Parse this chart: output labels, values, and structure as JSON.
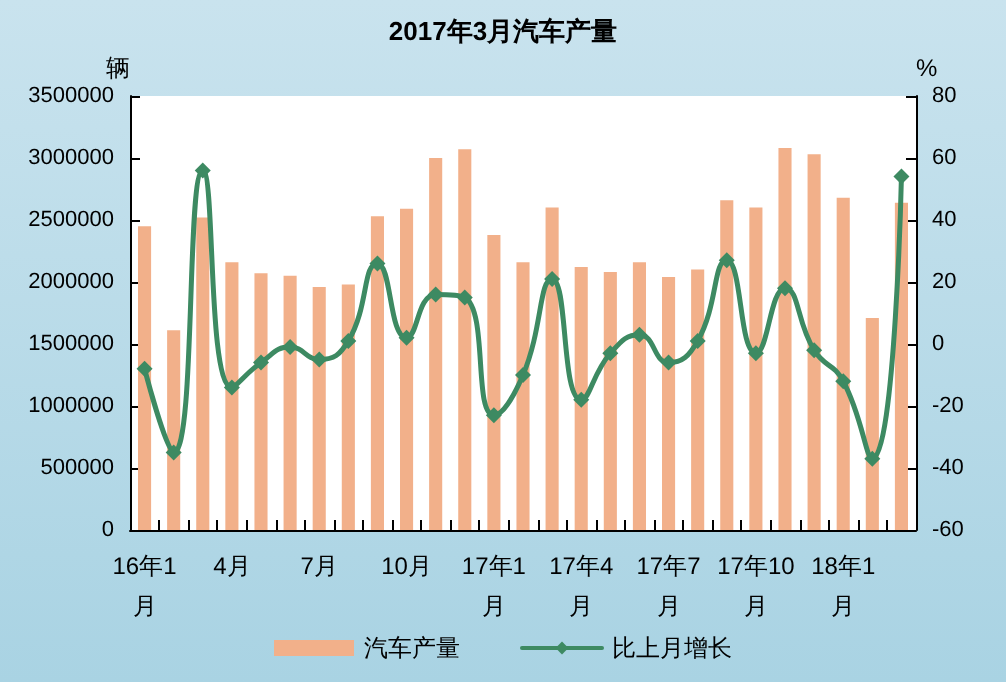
{
  "chart_data": {
    "type": "bar",
    "title": "2017年3月汽车产量",
    "ylabel": "辆",
    "y2label": "%",
    "categories": [
      "16年1\n月",
      null,
      null,
      "4月",
      null,
      null,
      "7月",
      null,
      null,
      "10月",
      null,
      null,
      "17年1\n月",
      null,
      null,
      "17年4\n月",
      null,
      null,
      "17年7\n月",
      null,
      null,
      "17年10\n月",
      null,
      null,
      "18年1\n月",
      null,
      null
    ],
    "series": [
      {
        "name": "汽车产量",
        "color": "#f2b08a",
        "values": [
          2450000,
          1610000,
          2520000,
          2160000,
          2070000,
          2050000,
          1960000,
          1980000,
          2530000,
          2590000,
          3000000,
          3070000,
          2380000,
          2160000,
          2600000,
          2120000,
          2080000,
          2160000,
          2040000,
          2100000,
          2660000,
          2600000,
          3080000,
          3030000,
          2680000,
          1710000,
          2640000
        ]
      },
      {
        "name": "比上月增长",
        "type": "line",
        "axis": "y2",
        "color": "#3d8a62",
        "marker": "diamond",
        "values": [
          -8,
          -35,
          56,
          -14,
          -6,
          -1,
          -5,
          1,
          26,
          2,
          16,
          15,
          -23,
          -10,
          21,
          -18,
          -3,
          3,
          -6,
          1,
          27,
          -3,
          18,
          -2,
          -12,
          -37,
          54
        ]
      }
    ],
    "ylim": [
      0,
      3500000
    ],
    "yticks": [
      0,
      500000,
      1000000,
      1500000,
      2000000,
      2500000,
      3000000,
      3500000
    ],
    "y2lim": [
      -60,
      80
    ],
    "y2ticks": [
      -60,
      -40,
      -20,
      0,
      20,
      40,
      60,
      80
    ],
    "grid": false,
    "legend": "bottom"
  }
}
